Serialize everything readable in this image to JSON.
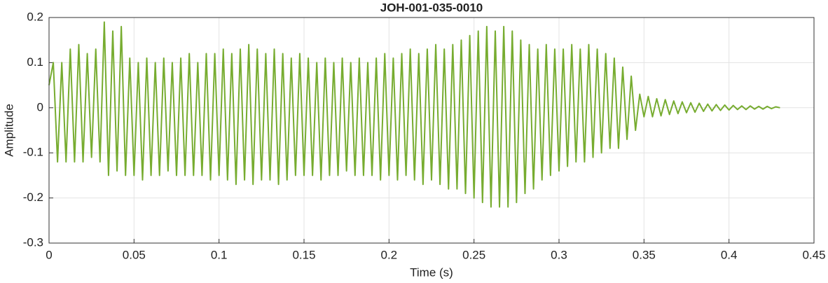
{
  "chart_data": {
    "type": "line",
    "title": "JOH-001-035-0010",
    "xlabel": "Time (s)",
    "ylabel": "Amplitude",
    "color": "#77ac30",
    "grid": true,
    "xlim": [
      0,
      0.45
    ],
    "xticks": [
      0,
      0.05,
      0.1,
      0.15,
      0.2,
      0.25,
      0.3,
      0.35,
      0.4,
      0.45
    ],
    "ylim": [
      -0.3,
      0.2
    ],
    "yticks": [
      -0.3,
      -0.2,
      -0.1,
      0,
      0.1,
      0.2
    ],
    "x": [
      0,
      0.0025,
      0.005,
      0.0075,
      0.01,
      0.0125,
      0.015,
      0.0175,
      0.02,
      0.0225,
      0.025,
      0.0275,
      0.03,
      0.0325,
      0.035,
      0.0375,
      0.04,
      0.0425,
      0.045,
      0.0475,
      0.05,
      0.0525,
      0.055,
      0.0575,
      0.06,
      0.0625,
      0.065,
      0.0675,
      0.07,
      0.0725,
      0.075,
      0.0775,
      0.08,
      0.0825,
      0.085,
      0.0875,
      0.09,
      0.0925,
      0.095,
      0.0975,
      0.1,
      0.1025,
      0.105,
      0.1075,
      0.11,
      0.1125,
      0.115,
      0.1175,
      0.12,
      0.1225,
      0.125,
      0.1275,
      0.13,
      0.1325,
      0.135,
      0.1375,
      0.14,
      0.1425,
      0.145,
      0.1475,
      0.15,
      0.1525,
      0.155,
      0.1575,
      0.16,
      0.1625,
      0.165,
      0.1675,
      0.17,
      0.1725,
      0.175,
      0.1775,
      0.18,
      0.1825,
      0.185,
      0.1875,
      0.19,
      0.1925,
      0.195,
      0.1975,
      0.2,
      0.2025,
      0.205,
      0.2075,
      0.21,
      0.2125,
      0.215,
      0.2175,
      0.22,
      0.2225,
      0.225,
      0.2275,
      0.23,
      0.2325,
      0.235,
      0.2375,
      0.24,
      0.2425,
      0.245,
      0.2475,
      0.25,
      0.2525,
      0.255,
      0.2575,
      0.26,
      0.2625,
      0.265,
      0.2675,
      0.27,
      0.2725,
      0.275,
      0.2775,
      0.28,
      0.2825,
      0.285,
      0.2875,
      0.29,
      0.2925,
      0.295,
      0.2975,
      0.3,
      0.3025,
      0.305,
      0.3075,
      0.31,
      0.3125,
      0.315,
      0.3175,
      0.32,
      0.3225,
      0.325,
      0.3275,
      0.33,
      0.3325,
      0.335,
      0.3375,
      0.34,
      0.3425,
      0.345,
      0.3475,
      0.35,
      0.3525,
      0.355,
      0.3575,
      0.36,
      0.3625,
      0.365,
      0.3675,
      0.37,
      0.3725,
      0.375,
      0.3775,
      0.38,
      0.3825,
      0.385,
      0.3875,
      0.39,
      0.3925,
      0.395,
      0.3975,
      0.4,
      0.4025,
      0.405,
      0.4075,
      0.41,
      0.4125,
      0.415,
      0.4175,
      0.42,
      0.4225,
      0.425,
      0.4275,
      0.43
    ],
    "values": [
      0.05,
      0.1,
      -0.12,
      0.1,
      -0.12,
      0.13,
      -0.12,
      0.14,
      -0.12,
      0.12,
      -0.11,
      0.13,
      -0.12,
      0.19,
      -0.15,
      0.17,
      -0.14,
      0.18,
      -0.15,
      0.11,
      -0.15,
      0.1,
      -0.16,
      0.11,
      -0.15,
      0.1,
      -0.15,
      0.11,
      -0.14,
      0.1,
      -0.15,
      0.11,
      -0.15,
      0.12,
      -0.15,
      0.1,
      -0.15,
      0.12,
      -0.16,
      0.12,
      -0.15,
      0.13,
      -0.16,
      0.12,
      -0.17,
      0.13,
      -0.16,
      0.14,
      -0.17,
      0.13,
      -0.16,
      0.12,
      -0.16,
      0.13,
      -0.17,
      0.12,
      -0.16,
      0.11,
      -0.15,
      0.12,
      -0.15,
      0.11,
      -0.15,
      0.1,
      -0.16,
      0.11,
      -0.15,
      0.1,
      -0.15,
      0.11,
      -0.14,
      0.1,
      -0.15,
      0.11,
      -0.15,
      0.1,
      -0.15,
      0.11,
      -0.16,
      0.12,
      -0.15,
      0.11,
      -0.16,
      0.12,
      -0.15,
      0.13,
      -0.16,
      0.12,
      -0.17,
      0.13,
      -0.16,
      0.14,
      -0.17,
      0.13,
      -0.18,
      0.14,
      -0.18,
      0.15,
      -0.19,
      0.16,
      -0.2,
      0.17,
      -0.21,
      0.18,
      -0.22,
      0.17,
      -0.22,
      0.18,
      -0.22,
      0.17,
      -0.21,
      0.15,
      -0.19,
      0.14,
      -0.18,
      0.13,
      -0.16,
      0.14,
      -0.15,
      0.13,
      -0.14,
      0.13,
      -0.13,
      0.14,
      -0.12,
      0.13,
      -0.12,
      0.14,
      -0.11,
      0.13,
      -0.1,
      0.12,
      -0.09,
      0.11,
      -0.09,
      0.09,
      -0.07,
      0.07,
      -0.05,
      0.03,
      -0.02,
      0.025,
      -0.02,
      0.02,
      -0.018,
      0.018,
      -0.015,
      0.015,
      -0.013,
      0.013,
      -0.011,
      0.011,
      -0.01,
      0.01,
      -0.008,
      0.008,
      -0.007,
      0.007,
      -0.006,
      0.006,
      -0.005,
      0.005,
      -0.004,
      0.004,
      -0.004,
      0.004,
      -0.003,
      0.003,
      -0.003,
      0.003,
      -0.002,
      0.002,
      0
    ]
  }
}
